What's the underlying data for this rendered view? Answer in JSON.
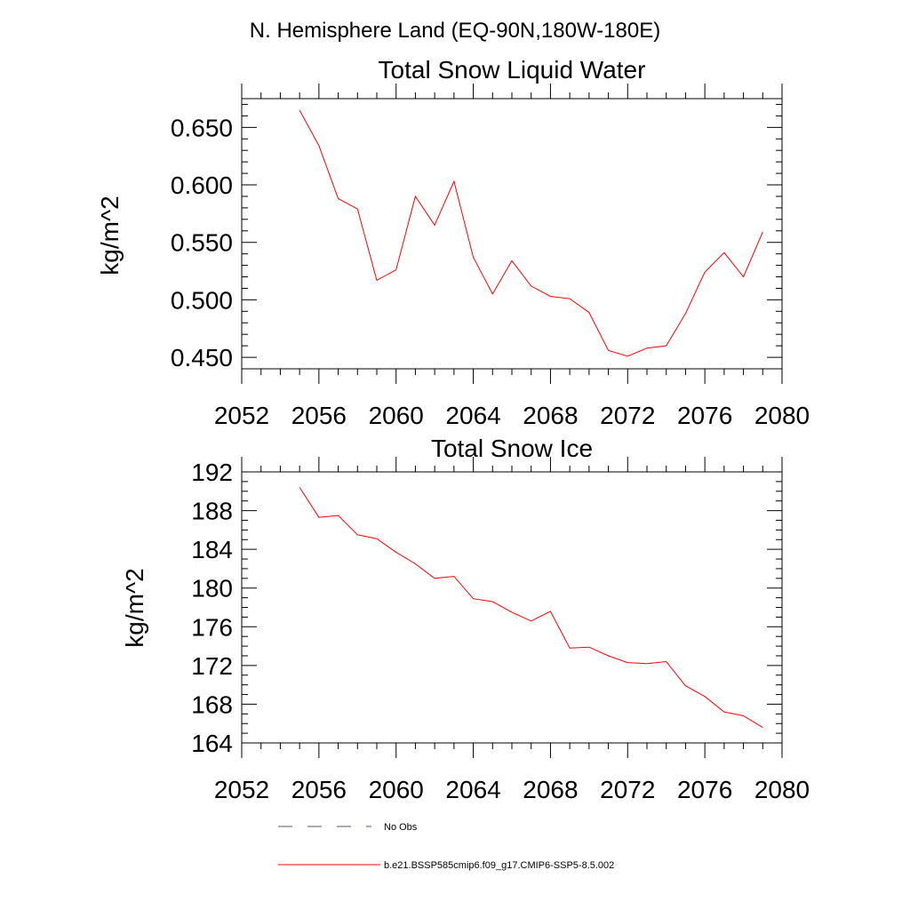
{
  "figure": {
    "suptitle": "N. Hemisphere Land (EQ-90N,180W-180E)"
  },
  "chart_data": [
    {
      "type": "line",
      "title": "Total Snow Liquid Water",
      "xlabel": "",
      "ylabel": "kg/m^2",
      "xlim": [
        2052,
        2080
      ],
      "ylim": [
        0.44,
        0.675
      ],
      "xticks": [
        2052,
        2056,
        2060,
        2064,
        2068,
        2072,
        2076,
        2080
      ],
      "xtick_labels": [
        "2052",
        "2056",
        "2060",
        "2064",
        "2068",
        "2072",
        "2076",
        "2080"
      ],
      "yticks": [
        0.45,
        0.5,
        0.55,
        0.6,
        0.65
      ],
      "ytick_labels": [
        "0.450",
        "0.500",
        "0.550",
        "0.600",
        "0.650"
      ],
      "grid": false,
      "x": [
        2055,
        2056,
        2057,
        2058,
        2059,
        2060,
        2061,
        2062,
        2063,
        2064,
        2065,
        2066,
        2067,
        2068,
        2069,
        2070,
        2071,
        2072,
        2073,
        2074,
        2075,
        2076,
        2077,
        2078,
        2079
      ],
      "series": [
        {
          "name": "b.e21.BSSP585cmip6.f09_g17.CMIP6-SSP5-8.5.002",
          "color": "#ff0000",
          "values": [
            0.665,
            0.634,
            0.588,
            0.579,
            0.517,
            0.526,
            0.59,
            0.565,
            0.603,
            0.537,
            0.505,
            0.534,
            0.512,
            0.503,
            0.501,
            0.489,
            0.456,
            0.451,
            0.458,
            0.46,
            0.488,
            0.524,
            0.541,
            0.52,
            0.559
          ]
        }
      ]
    },
    {
      "type": "line",
      "title": "Total Snow Ice",
      "xlabel": "",
      "ylabel": "kg/m^2",
      "xlim": [
        2052,
        2080
      ],
      "ylim": [
        164,
        192
      ],
      "xticks": [
        2052,
        2056,
        2060,
        2064,
        2068,
        2072,
        2076,
        2080
      ],
      "xtick_labels": [
        "2052",
        "2056",
        "2060",
        "2064",
        "2068",
        "2072",
        "2076",
        "2080"
      ],
      "yticks": [
        164,
        168,
        172,
        176,
        180,
        184,
        188,
        192
      ],
      "ytick_labels": [
        "164",
        "168",
        "172",
        "176",
        "180",
        "184",
        "188",
        "192"
      ],
      "grid": false,
      "x": [
        2055,
        2056,
        2057,
        2058,
        2059,
        2060,
        2061,
        2062,
        2063,
        2064,
        2065,
        2066,
        2067,
        2068,
        2069,
        2070,
        2071,
        2072,
        2073,
        2074,
        2075,
        2076,
        2077,
        2078,
        2079
      ],
      "series": [
        {
          "name": "b.e21.BSSP585cmip6.f09_g17.CMIP6-SSP5-8.5.002",
          "color": "#ff0000",
          "values": [
            190.4,
            187.3,
            187.5,
            185.5,
            185.1,
            183.7,
            182.5,
            181.0,
            181.2,
            178.9,
            178.6,
            177.5,
            176.6,
            177.6,
            173.8,
            173.9,
            173.0,
            172.3,
            172.2,
            172.4,
            169.9,
            168.8,
            167.2,
            166.8,
            165.6
          ]
        }
      ]
    }
  ],
  "legend": {
    "entries": [
      {
        "label": "No Obs",
        "style": "dashed",
        "color": "#555577"
      },
      {
        "label": "b.e21.BSSP585cmip6.f09_g17.CMIP6-SSP5-8.5.002",
        "style": "solid",
        "color": "#ff0000"
      }
    ]
  }
}
